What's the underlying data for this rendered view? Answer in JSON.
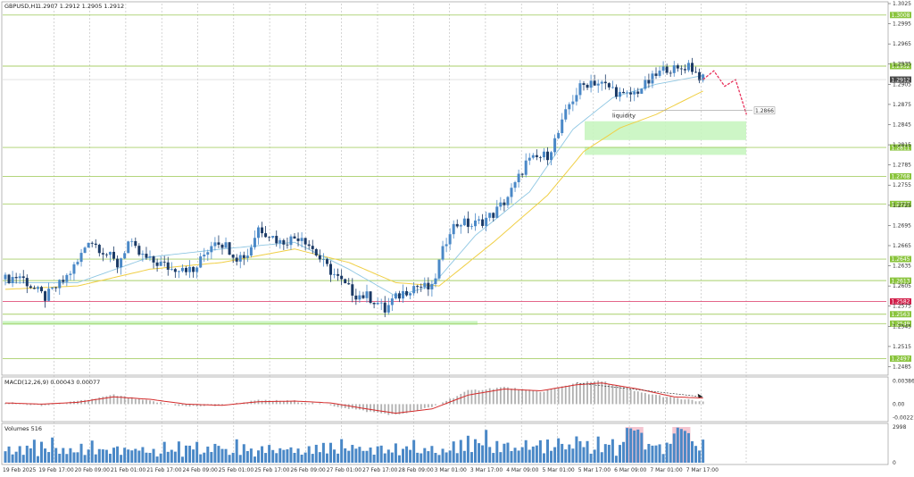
{
  "header": {
    "symbol": "GBPUSD,H1",
    "ohlc": "1.2907 1.2912 1.2905 1.2912"
  },
  "colors": {
    "bull": "#4a88c7",
    "bear": "#1b3a66",
    "ma_fast": "#8fc7e3",
    "ma_slow": "#f0cf45",
    "level": "#a8cf6a",
    "level_tag": "#8ac43d",
    "red_level": "#e0507a",
    "zone": "#c8f5c0",
    "macd_line": "#d42b2b",
    "macd_hist": "#b0b0b0",
    "volume": "#4a88c7",
    "volume_highlight": "#f2b8c6",
    "forecast": "#e8305a"
  },
  "chart_data": {
    "type": "candlestick",
    "timeframe": "H1",
    "ylim": [
      1.2475,
      1.3025
    ],
    "price_ticks": [
      "1.3025",
      "1.2995",
      "1.2965",
      "1.2935",
      "1.2905",
      "1.2875",
      "1.2845",
      "1.2815",
      "1.2785",
      "1.2755",
      "1.2725",
      "1.2695",
      "1.2665",
      "1.2635",
      "1.2605",
      "1.2575",
      "1.2545",
      "1.2515",
      "1.2485"
    ],
    "time_labels": [
      "19 Feb 2025",
      "19 Feb 17:00",
      "20 Feb 09:00",
      "21 Feb 01:00",
      "21 Feb 17:00",
      "24 Feb 09:00",
      "25 Feb 01:00",
      "25 Feb 17:00",
      "26 Feb 09:00",
      "27 Feb 01:00",
      "27 Feb 17:00",
      "28 Feb 09:00",
      "3 Mar 01:00",
      "3 Mar 17:00",
      "4 Mar 09:00",
      "5 Mar 01:00",
      "5 Mar 17:00",
      "6 Mar 09:00",
      "7 Mar 01:00",
      "7 Mar 17:00"
    ],
    "close_path": [
      [
        0,
        1.2615
      ],
      [
        4,
        1.262
      ],
      [
        8,
        1.26
      ],
      [
        11,
        1.2588
      ],
      [
        13,
        1.2598
      ],
      [
        16,
        1.2612
      ],
      [
        20,
        1.264
      ],
      [
        23,
        1.2675
      ],
      [
        26,
        1.2662
      ],
      [
        29,
        1.2648
      ],
      [
        31,
        1.2636
      ],
      [
        34,
        1.267
      ],
      [
        37,
        1.2652
      ],
      [
        40,
        1.2642
      ],
      [
        43,
        1.2638
      ],
      [
        46,
        1.263
      ],
      [
        49,
        1.2635
      ],
      [
        52,
        1.2625
      ],
      [
        55,
        1.2652
      ],
      [
        58,
        1.2675
      ],
      [
        61,
        1.2665
      ],
      [
        64,
        1.2648
      ],
      [
        67,
        1.2652
      ],
      [
        70,
        1.2692
      ],
      [
        73,
        1.2682
      ],
      [
        76,
        1.267
      ],
      [
        79,
        1.2675
      ],
      [
        82,
        1.268
      ],
      [
        85,
        1.266
      ],
      [
        88,
        1.2638
      ],
      [
        91,
        1.2622
      ],
      [
        94,
        1.2605
      ],
      [
        97,
        1.2592
      ],
      [
        100,
        1.259
      ],
      [
        103,
        1.258
      ],
      [
        105,
        1.2568
      ],
      [
        107,
        1.2583
      ],
      [
        110,
        1.2595
      ],
      [
        113,
        1.2605
      ],
      [
        116,
        1.2603
      ],
      [
        118,
        1.26
      ],
      [
        120,
        1.264
      ],
      [
        123,
        1.269
      ],
      [
        126,
        1.27
      ],
      [
        129,
        1.2695
      ],
      [
        132,
        1.2702
      ],
      [
        135,
        1.2712
      ],
      [
        138,
        1.273
      ],
      [
        141,
        1.2755
      ],
      [
        144,
        1.2788
      ],
      [
        147,
        1.2795
      ],
      [
        150,
        1.28
      ],
      [
        153,
        1.2832
      ],
      [
        156,
        1.2875
      ],
      [
        159,
        1.29
      ],
      [
        162,
        1.291
      ],
      [
        165,
        1.2905
      ],
      [
        168,
        1.2898
      ],
      [
        171,
        1.2886
      ],
      [
        174,
        1.2892
      ],
      [
        177,
        1.2904
      ],
      [
        180,
        1.2918
      ],
      [
        183,
        1.293
      ],
      [
        186,
        1.2925
      ],
      [
        189,
        1.2935
      ],
      [
        191,
        1.2922
      ],
      [
        193,
        1.2912
      ]
    ],
    "ma_fast_path": [
      [
        0,
        1.261
      ],
      [
        20,
        1.261
      ],
      [
        40,
        1.2648
      ],
      [
        60,
        1.266
      ],
      [
        80,
        1.267
      ],
      [
        95,
        1.263
      ],
      [
        108,
        1.259
      ],
      [
        118,
        1.2605
      ],
      [
        130,
        1.268
      ],
      [
        145,
        1.2745
      ],
      [
        157,
        1.2838
      ],
      [
        168,
        1.2885
      ],
      [
        180,
        1.2905
      ],
      [
        193,
        1.2918
      ]
    ],
    "ma_slow_path": [
      [
        0,
        1.26
      ],
      [
        20,
        1.2605
      ],
      [
        40,
        1.263
      ],
      [
        60,
        1.264
      ],
      [
        80,
        1.266
      ],
      [
        95,
        1.264
      ],
      [
        108,
        1.261
      ],
      [
        120,
        1.2605
      ],
      [
        135,
        1.267
      ],
      [
        150,
        1.274
      ],
      [
        160,
        1.2805
      ],
      [
        170,
        1.284
      ],
      [
        180,
        1.286
      ],
      [
        193,
        1.2895
      ]
    ],
    "forecast_path": [
      [
        193,
        1.2912
      ],
      [
        196,
        1.2925
      ],
      [
        199,
        1.2902
      ],
      [
        202,
        1.2912
      ],
      [
        205,
        1.286
      ]
    ],
    "levels": [
      {
        "label": "1.3008",
        "color": "green"
      },
      {
        "label": "1.2932",
        "color": "green"
      },
      {
        "label": "1.2811",
        "color": "green"
      },
      {
        "label": "1.2768",
        "color": "green"
      },
      {
        "label": "1.2727",
        "color": "green"
      },
      {
        "label": "1.2645",
        "color": "green"
      },
      {
        "label": "1.2613",
        "color": "green"
      },
      {
        "label": "1.2582",
        "color": "red"
      },
      {
        "label": "1.2563",
        "color": "green"
      },
      {
        "label": "1.2549",
        "color": "green"
      },
      {
        "label": "1.2497",
        "color": "green"
      }
    ],
    "current_price": "1.2912",
    "extra_price_tag": "1.2866",
    "zones": [
      [
        1.2822,
        1.285
      ],
      [
        1.28,
        1.2812
      ],
      [
        1.2547,
        1.2553
      ]
    ],
    "annotation": "liquidity"
  },
  "macd": {
    "label": "MACD(12,26,9) 0.00043 0.00077",
    "ticks": [
      "0.00386",
      "0.00",
      "-0.00221"
    ],
    "ylim": [
      -0.0026,
      0.0042
    ],
    "signal_path": [
      [
        0,
        0.0002
      ],
      [
        10,
        0.0
      ],
      [
        20,
        0.0003
      ],
      [
        30,
        0.0012
      ],
      [
        40,
        0.0008
      ],
      [
        50,
        0.0
      ],
      [
        60,
        -0.0002
      ],
      [
        70,
        0.0004
      ],
      [
        80,
        0.0005
      ],
      [
        90,
        0.0002
      ],
      [
        100,
        -0.0008
      ],
      [
        108,
        -0.0015
      ],
      [
        118,
        -0.0008
      ],
      [
        128,
        0.0015
      ],
      [
        138,
        0.0025
      ],
      [
        148,
        0.0022
      ],
      [
        158,
        0.0032
      ],
      [
        165,
        0.0035
      ],
      [
        175,
        0.0025
      ],
      [
        185,
        0.0012
      ],
      [
        193,
        0.001
      ]
    ],
    "histogram_path": [
      [
        0,
        0.0003
      ],
      [
        10,
        -0.0003
      ],
      [
        22,
        0.0006
      ],
      [
        30,
        0.0015
      ],
      [
        40,
        0.0005
      ],
      [
        50,
        -0.0004
      ],
      [
        60,
        -0.0002
      ],
      [
        70,
        0.0006
      ],
      [
        80,
        0.0005
      ],
      [
        90,
        -0.0002
      ],
      [
        100,
        -0.0012
      ],
      [
        108,
        -0.0018
      ],
      [
        118,
        -0.0005
      ],
      [
        128,
        0.0022
      ],
      [
        138,
        0.0028
      ],
      [
        148,
        0.002
      ],
      [
        158,
        0.0035
      ],
      [
        165,
        0.0038
      ],
      [
        175,
        0.002
      ],
      [
        185,
        0.001
      ],
      [
        193,
        0.0004
      ]
    ],
    "trend_arrow": [
      [
        158,
        0.0035
      ],
      [
        193,
        0.0012
      ]
    ]
  },
  "volumes": {
    "label": "Volumes 516",
    "ticks": [
      "2998",
      "0"
    ],
    "max": 2998,
    "highlight_windows": [
      [
        172,
        176
      ],
      [
        185,
        189
      ]
    ],
    "seed_pattern": [
      900,
      1300,
      700,
      1100,
      1600,
      800,
      1200,
      1000,
      1500,
      600,
      1400,
      1100,
      900,
      1700,
      1000,
      800,
      1250,
      950,
      1450,
      1150
    ]
  }
}
